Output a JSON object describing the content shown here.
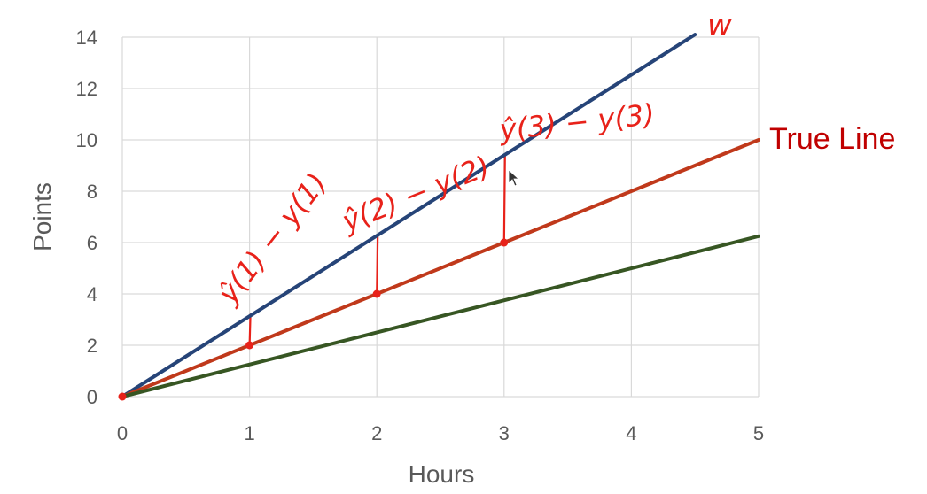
{
  "chart_data": {
    "type": "line",
    "title": "",
    "xlabel": "Hours",
    "ylabel": "Points",
    "xlim": [
      0,
      5
    ],
    "ylim": [
      0,
      14
    ],
    "xticks": [
      "0",
      "1",
      "2",
      "3",
      "4",
      "5"
    ],
    "yticks": [
      "0",
      "2",
      "4",
      "6",
      "8",
      "10",
      "12",
      "14"
    ],
    "grid": true,
    "series": [
      {
        "color": "#264478",
        "x": [
          0,
          4.5
        ],
        "y": [
          0,
          14.1
        ]
      },
      {
        "name": "True Line",
        "color": "#c0391b",
        "x": [
          0,
          5
        ],
        "y": [
          0,
          10
        ]
      },
      {
        "color": "#375623",
        "x": [
          0,
          5
        ],
        "y": [
          0,
          6.25
        ]
      }
    ],
    "points": {
      "color": "#e8221a",
      "x": [
        0,
        1,
        2,
        3
      ],
      "y": [
        0,
        2,
        4,
        6
      ]
    },
    "annotations": [
      {
        "text": "w",
        "color": "#e8221a"
      },
      {
        "text": "ŷ(1) − y(1)",
        "color": "#e8221a"
      },
      {
        "text": "ŷ(2) − y(2)",
        "color": "#e8221a"
      },
      {
        "text": "ŷ(3) − y(3)",
        "color": "#e8221a"
      }
    ],
    "error_segments": [
      {
        "x": 1,
        "y_from": 2,
        "y_to": 3.2
      },
      {
        "x": 2,
        "y_from": 4,
        "y_to": 6.3
      },
      {
        "x": 3,
        "y_from": 6,
        "y_to": 9.4
      }
    ]
  }
}
